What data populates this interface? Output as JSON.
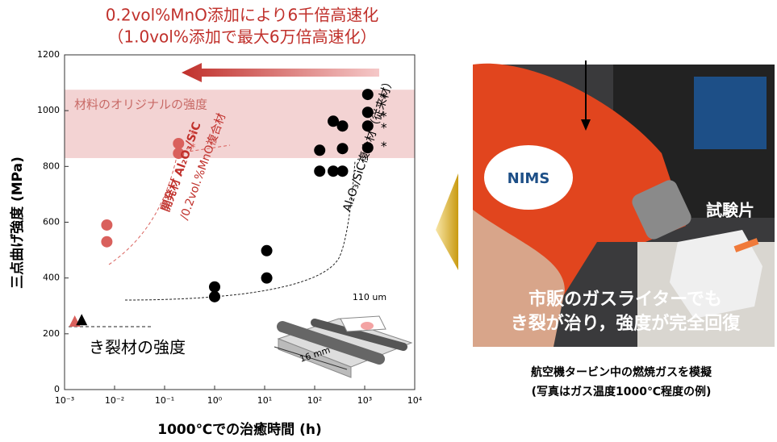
{
  "chart_data": {
    "type": "scatter",
    "title": "0.2vol%MnO添加により6千倍高速化",
    "subtitle": "（1.0vol%添加で最大6万倍高速化）",
    "x_label": "1000℃での治癒時間 (h)",
    "y_label": "三点曲げ強度 (MPa)",
    "xscale": "log",
    "xlim": [
      0.001,
      10000
    ],
    "ylim": [
      0,
      1200
    ],
    "xticks": [
      {
        "value": 0.001,
        "label": "10⁻³"
      },
      {
        "value": 0.01,
        "label": "10⁻²"
      },
      {
        "value": 0.1,
        "label": "10⁻¹"
      },
      {
        "value": 1,
        "label": "10⁰"
      },
      {
        "value": 10,
        "label": "10¹"
      },
      {
        "value": 100,
        "label": "10²"
      },
      {
        "value": 1000,
        "label": "10³"
      },
      {
        "value": 10000,
        "label": "10⁴"
      }
    ],
    "yticks": [
      0,
      200,
      400,
      600,
      800,
      1000,
      1200
    ],
    "band": {
      "label": "材料のオリジナルの強度",
      "range": [
        830,
        1075
      ],
      "color": "#f3d3d3"
    },
    "series": [
      {
        "marker": "circle",
        "color": "#d9605c",
        "x": [
          0.007,
          0.007,
          0.19,
          0.19
        ],
        "values": [
          590,
          530,
          882,
          847
        ]
      },
      {
        "marker": "circle",
        "color": "#000000",
        "x": [
          1,
          1,
          11,
          11,
          126,
          126,
          235,
          235,
          360,
          360,
          360,
          1150,
          1150,
          1150,
          1150
        ],
        "values": [
          368,
          333,
          498,
          400,
          858,
          783,
          962,
          783,
          945,
          864,
          783,
          1058,
          994,
          945,
          867
        ]
      },
      {
        "marker": "triangle",
        "color": "#d9605c",
        "x": [
          0.0016
        ],
        "values": [
          240
        ]
      },
      {
        "marker": "triangle",
        "color": "#000000",
        "x": [
          0.0022
        ],
        "values": [
          245
        ]
      }
    ],
    "annotations": [
      "開発材 Al₂O₃/SiC",
      "/0.2vol.%MnO複合材",
      "Al₂O₃/SiC複合材（従来材）",
      "き裂材の強度",
      "110 um",
      "16 mm",
      "*",
      "*",
      "*",
      "*",
      "*",
      "*"
    ]
  },
  "photo": {
    "labels": [
      "試験片",
      "市販のガスライターでも",
      "き裂が治り，強度が完全回復",
      "NIMS"
    ],
    "caption": [
      "航空機タービン中の燃焼ガスを模擬",
      "(写真はガス温度1000℃程度の例)"
    ]
  }
}
